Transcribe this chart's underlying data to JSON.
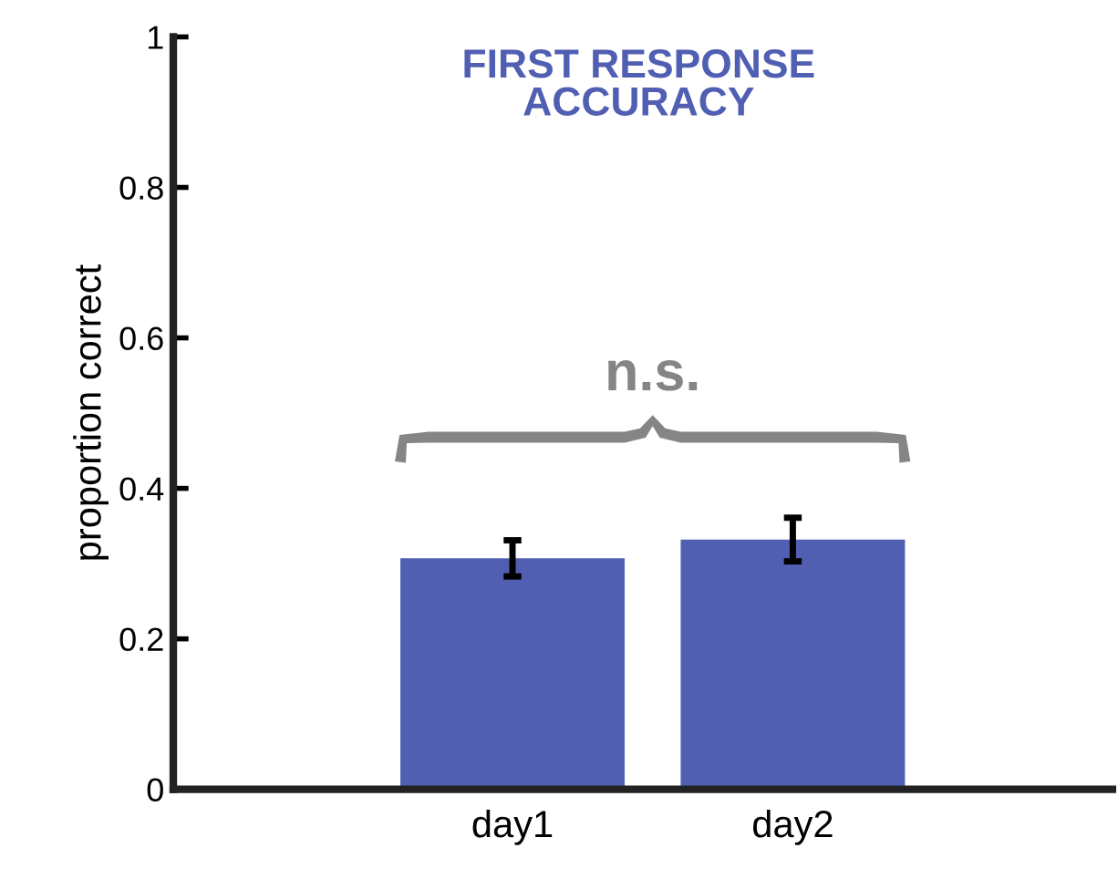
{
  "chart_data": {
    "type": "bar",
    "title": "FIRST RESPONSE\nACCURACY",
    "ylabel": "proportion correct",
    "categories": [
      "day1",
      "day2"
    ],
    "series": [
      {
        "color": "#515fb3",
        "values": [
          0.307,
          0.332
        ],
        "errors": [
          0.024,
          0.029
        ]
      }
    ],
    "ylim": [
      0,
      1
    ],
    "yticks": [
      0,
      0.2,
      0.4,
      0.6,
      0.8,
      1
    ],
    "annotations": [
      "n.s."
    ],
    "grid": false,
    "legend": false
  }
}
